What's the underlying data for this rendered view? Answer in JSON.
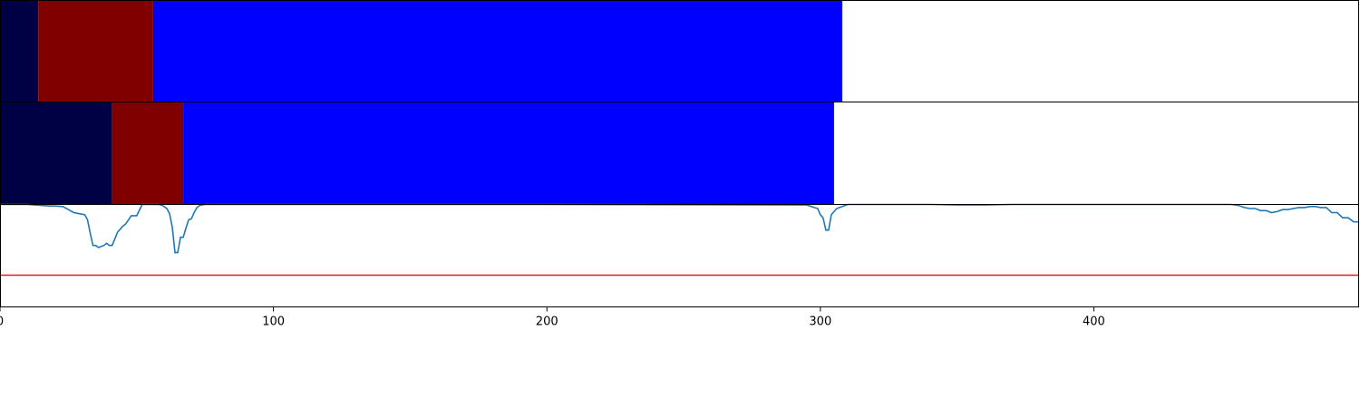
{
  "chart_data": [
    {
      "type": "bar",
      "orientation": "horizontal",
      "panel": "segments-top",
      "xlim": [
        0,
        497
      ],
      "segments": [
        {
          "start": 0,
          "end": 14,
          "color": "#000045"
        },
        {
          "start": 14,
          "end": 56,
          "color": "#800000"
        },
        {
          "start": 56,
          "end": 308,
          "color": "#0000ff"
        }
      ]
    },
    {
      "type": "bar",
      "orientation": "horizontal",
      "panel": "segments-middle",
      "xlim": [
        0,
        497
      ],
      "segments": [
        {
          "start": 0,
          "end": 41,
          "color": "#000045"
        },
        {
          "start": 41,
          "end": 67,
          "color": "#800000"
        },
        {
          "start": 67,
          "end": 305,
          "color": "#0000ff"
        }
      ]
    },
    {
      "type": "line",
      "panel": "signal",
      "xlim": [
        0,
        497
      ],
      "ylim": [
        0,
        1
      ],
      "series": [
        {
          "color": "#1f77b4",
          "x": [
            0,
            10,
            15,
            18,
            20,
            23,
            25,
            27,
            29,
            31,
            32,
            33,
            34,
            35,
            36,
            38,
            39,
            40,
            41,
            43,
            44,
            45,
            46,
            48,
            49,
            50,
            52,
            55,
            58,
            59,
            60,
            61,
            62,
            63,
            64,
            65,
            66,
            67,
            68,
            69,
            70,
            71,
            72,
            73,
            75,
            80,
            100,
            112,
            113,
            200,
            295,
            299,
            300,
            301,
            302,
            303,
            304,
            305,
            306,
            307,
            308,
            309,
            310,
            312,
            314,
            330,
            340,
            350,
            360,
            370,
            380,
            400,
            420,
            440,
            450,
            453,
            455,
            457,
            459,
            461,
            463,
            465,
            467,
            469,
            471,
            473,
            475,
            477,
            479,
            481,
            483,
            485,
            487,
            489,
            491,
            493,
            495,
            497
          ],
          "y": [
            1.0,
            1.0,
            0.99,
            0.985,
            0.985,
            0.98,
            0.95,
            0.92,
            0.91,
            0.9,
            0.85,
            0.72,
            0.6,
            0.6,
            0.58,
            0.6,
            0.62,
            0.6,
            0.6,
            0.73,
            0.76,
            0.79,
            0.81,
            0.89,
            0.89,
            0.89,
            1.0,
            1.0,
            1.0,
            0.995,
            0.98,
            0.96,
            0.91,
            0.78,
            0.53,
            0.53,
            0.68,
            0.68,
            0.77,
            0.85,
            0.86,
            0.92,
            0.97,
            0.99,
            1.0,
            1.0,
            1.0,
            1.0,
            1.0,
            1.0,
            0.995,
            0.96,
            0.9,
            0.87,
            0.75,
            0.75,
            0.9,
            0.93,
            0.96,
            0.97,
            0.98,
            0.99,
            1.0,
            1.0,
            1.0,
            1.0,
            1.0,
            0.995,
            0.995,
            1.0,
            1.0,
            1.0,
            1.0,
            1.0,
            1.0,
            0.99,
            0.97,
            0.96,
            0.96,
            0.94,
            0.94,
            0.92,
            0.93,
            0.95,
            0.95,
            0.96,
            0.97,
            0.97,
            0.98,
            0.98,
            0.97,
            0.97,
            0.92,
            0.92,
            0.87,
            0.87,
            0.83,
            0.83
          ]
        },
        {
          "color": "#e41a1c",
          "x": [
            0,
            497
          ],
          "y": [
            0.31,
            0.31
          ]
        }
      ],
      "x_ticks": [
        0,
        100,
        200,
        300,
        400
      ]
    }
  ]
}
